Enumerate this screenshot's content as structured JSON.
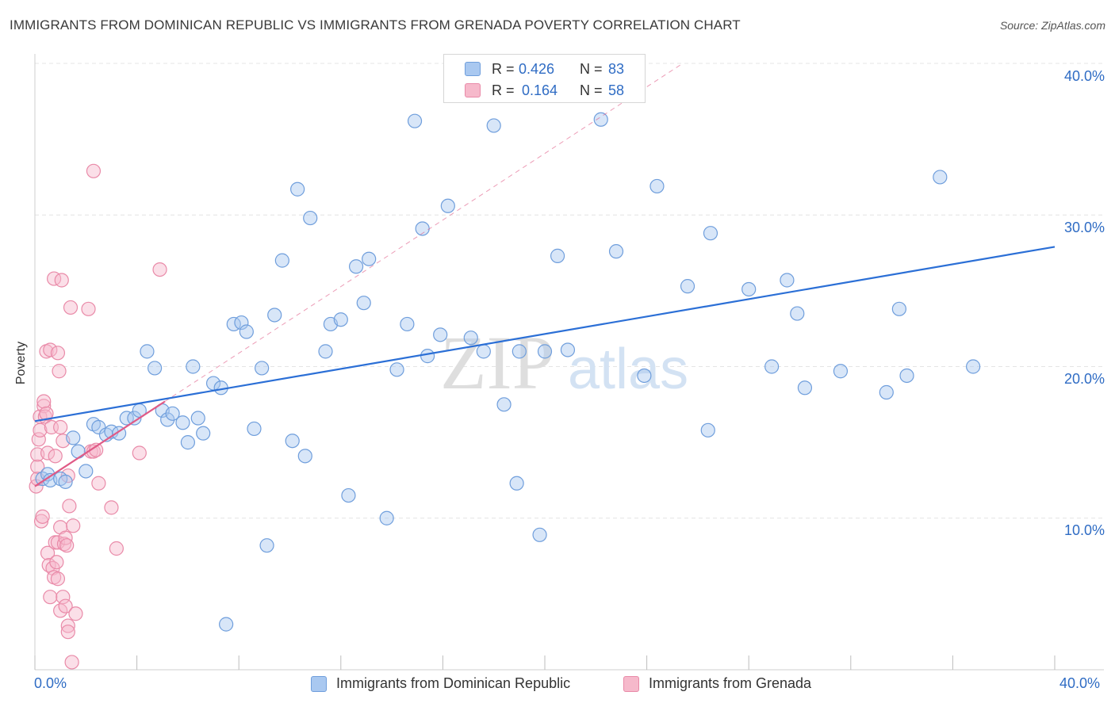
{
  "title": "IMMIGRANTS FROM DOMINICAN REPUBLIC VS IMMIGRANTS FROM GRENADA POVERTY CORRELATION CHART",
  "source": "Source: ZipAtlas.com",
  "legend_top": {
    "row1": {
      "r_label": "R =",
      "r_value": "0.426",
      "n_label": "N =",
      "n_value": "83"
    },
    "row2": {
      "r_label": "R =",
      "r_value": "0.164",
      "n_label": "N =",
      "n_value": "58"
    }
  },
  "watermark": {
    "zip": "ZIP",
    "atlas": "atlas"
  },
  "colors": {
    "blue_fill": "#a9c8f0",
    "blue_stroke": "#6f9edc",
    "blue_line": "#2b6fd6",
    "pink_fill": "#f6b9cb",
    "pink_stroke": "#e98aa8",
    "pink_line": "#e05a86",
    "tick_text": "#2f6cc4",
    "grid": "#e4e4e4"
  },
  "chart_data": {
    "type": "scatter",
    "title": "IMMIGRANTS FROM DOMINICAN REPUBLIC VS IMMIGRANTS FROM GRENADA POVERTY CORRELATION CHART",
    "xlabel": "",
    "ylabel": "Poverty",
    "xlim": [
      0,
      40
    ],
    "ylim": [
      0,
      40
    ],
    "x_tick_labels": [
      "0.0%",
      "40.0%"
    ],
    "y_tick_labels": [
      "10.0%",
      "20.0%",
      "30.0%",
      "40.0%"
    ],
    "y_ticks": [
      10,
      20,
      30,
      40
    ],
    "grid": true,
    "legend_position": "bottom",
    "series": [
      {
        "name": "Immigrants from Dominican Republic",
        "color": "#a9c8f0",
        "trend": {
          "x": [
            0,
            40
          ],
          "y": [
            16.4,
            27.9
          ]
        },
        "points": [
          [
            0.3,
            12.6
          ],
          [
            0.5,
            12.9
          ],
          [
            0.6,
            12.5
          ],
          [
            1.0,
            12.6
          ],
          [
            1.2,
            12.4
          ],
          [
            1.5,
            15.3
          ],
          [
            1.7,
            14.4
          ],
          [
            2.0,
            13.1
          ],
          [
            2.3,
            16.2
          ],
          [
            2.5,
            16.0
          ],
          [
            2.8,
            15.5
          ],
          [
            3.0,
            15.7
          ],
          [
            3.3,
            15.6
          ],
          [
            3.6,
            16.6
          ],
          [
            3.9,
            16.6
          ],
          [
            4.1,
            17.1
          ],
          [
            4.4,
            21.0
          ],
          [
            4.7,
            19.9
          ],
          [
            5.0,
            17.1
          ],
          [
            5.2,
            16.5
          ],
          [
            5.4,
            16.9
          ],
          [
            5.8,
            16.3
          ],
          [
            6.0,
            15.0
          ],
          [
            6.2,
            20.0
          ],
          [
            6.4,
            16.6
          ],
          [
            6.6,
            15.6
          ],
          [
            7.0,
            18.9
          ],
          [
            7.3,
            18.6
          ],
          [
            7.5,
            3.0
          ],
          [
            7.8,
            22.8
          ],
          [
            8.1,
            22.9
          ],
          [
            8.3,
            22.3
          ],
          [
            8.6,
            15.9
          ],
          [
            8.9,
            19.9
          ],
          [
            9.1,
            8.2
          ],
          [
            9.4,
            23.4
          ],
          [
            9.7,
            27.0
          ],
          [
            10.1,
            15.1
          ],
          [
            10.3,
            31.7
          ],
          [
            10.6,
            14.1
          ],
          [
            10.8,
            29.8
          ],
          [
            11.4,
            21.0
          ],
          [
            11.6,
            22.8
          ],
          [
            12.0,
            23.1
          ],
          [
            12.3,
            11.5
          ],
          [
            12.6,
            26.6
          ],
          [
            12.9,
            24.2
          ],
          [
            13.1,
            27.1
          ],
          [
            13.8,
            10.0
          ],
          [
            14.2,
            19.8
          ],
          [
            14.6,
            22.8
          ],
          [
            14.9,
            36.2
          ],
          [
            15.2,
            29.1
          ],
          [
            15.4,
            20.7
          ],
          [
            15.9,
            22.1
          ],
          [
            16.2,
            30.6
          ],
          [
            17.1,
            21.9
          ],
          [
            17.6,
            21.0
          ],
          [
            18.0,
            35.9
          ],
          [
            18.4,
            17.5
          ],
          [
            18.9,
            12.3
          ],
          [
            19.0,
            21.0
          ],
          [
            19.8,
            8.9
          ],
          [
            20.0,
            21.0
          ],
          [
            20.5,
            27.3
          ],
          [
            20.9,
            21.1
          ],
          [
            22.2,
            36.3
          ],
          [
            22.8,
            27.6
          ],
          [
            23.9,
            19.4
          ],
          [
            24.4,
            31.9
          ],
          [
            25.6,
            25.3
          ],
          [
            26.4,
            15.8
          ],
          [
            26.5,
            28.8
          ],
          [
            28.0,
            25.1
          ],
          [
            28.9,
            20.0
          ],
          [
            29.5,
            25.7
          ],
          [
            29.9,
            23.5
          ],
          [
            30.2,
            18.6
          ],
          [
            31.6,
            19.7
          ],
          [
            33.4,
            18.3
          ],
          [
            33.9,
            23.8
          ],
          [
            34.2,
            19.4
          ],
          [
            35.5,
            32.5
          ],
          [
            36.8,
            20.0
          ]
        ]
      },
      {
        "name": "Immigrants from Grenada",
        "color": "#f6b9cb",
        "trend": {
          "x": [
            0,
            5.1
          ],
          "y": [
            12.1,
            17.7
          ]
        },
        "points": [
          [
            0.05,
            12.1
          ],
          [
            0.1,
            12.6
          ],
          [
            0.1,
            13.4
          ],
          [
            0.1,
            14.2
          ],
          [
            0.15,
            15.2
          ],
          [
            0.2,
            15.8
          ],
          [
            0.2,
            16.7
          ],
          [
            0.25,
            9.8
          ],
          [
            0.3,
            10.1
          ],
          [
            0.35,
            17.4
          ],
          [
            0.35,
            17.7
          ],
          [
            0.4,
            16.7
          ],
          [
            0.45,
            16.9
          ],
          [
            0.45,
            21.0
          ],
          [
            0.5,
            14.3
          ],
          [
            0.5,
            7.7
          ],
          [
            0.55,
            6.9
          ],
          [
            0.6,
            4.8
          ],
          [
            0.6,
            21.1
          ],
          [
            0.65,
            16.0
          ],
          [
            0.7,
            6.7
          ],
          [
            0.75,
            25.8
          ],
          [
            0.75,
            6.1
          ],
          [
            0.8,
            8.4
          ],
          [
            0.8,
            14.1
          ],
          [
            0.85,
            7.1
          ],
          [
            0.9,
            8.4
          ],
          [
            0.9,
            20.9
          ],
          [
            0.9,
            6.0
          ],
          [
            0.95,
            19.7
          ],
          [
            1.0,
            9.4
          ],
          [
            1.0,
            3.9
          ],
          [
            1.0,
            16.0
          ],
          [
            1.05,
            25.7
          ],
          [
            1.1,
            4.8
          ],
          [
            1.1,
            15.1
          ],
          [
            1.15,
            8.3
          ],
          [
            1.2,
            8.7
          ],
          [
            1.2,
            4.2
          ],
          [
            1.25,
            8.2
          ],
          [
            1.3,
            2.9
          ],
          [
            1.3,
            2.5
          ],
          [
            1.3,
            12.8
          ],
          [
            1.35,
            10.8
          ],
          [
            1.4,
            23.9
          ],
          [
            1.45,
            0.5
          ],
          [
            1.5,
            9.5
          ],
          [
            1.6,
            3.7
          ],
          [
            2.1,
            23.8
          ],
          [
            2.2,
            14.4
          ],
          [
            2.3,
            14.4
          ],
          [
            2.3,
            32.9
          ],
          [
            2.4,
            14.5
          ],
          [
            2.5,
            12.3
          ],
          [
            3.0,
            10.7
          ],
          [
            3.2,
            8.0
          ],
          [
            4.1,
            14.3
          ],
          [
            4.9,
            26.4
          ]
        ]
      }
    ]
  },
  "legend_bottom": [
    {
      "label": "Immigrants from Dominican Republic"
    },
    {
      "label": "Immigrants from Grenada"
    }
  ]
}
